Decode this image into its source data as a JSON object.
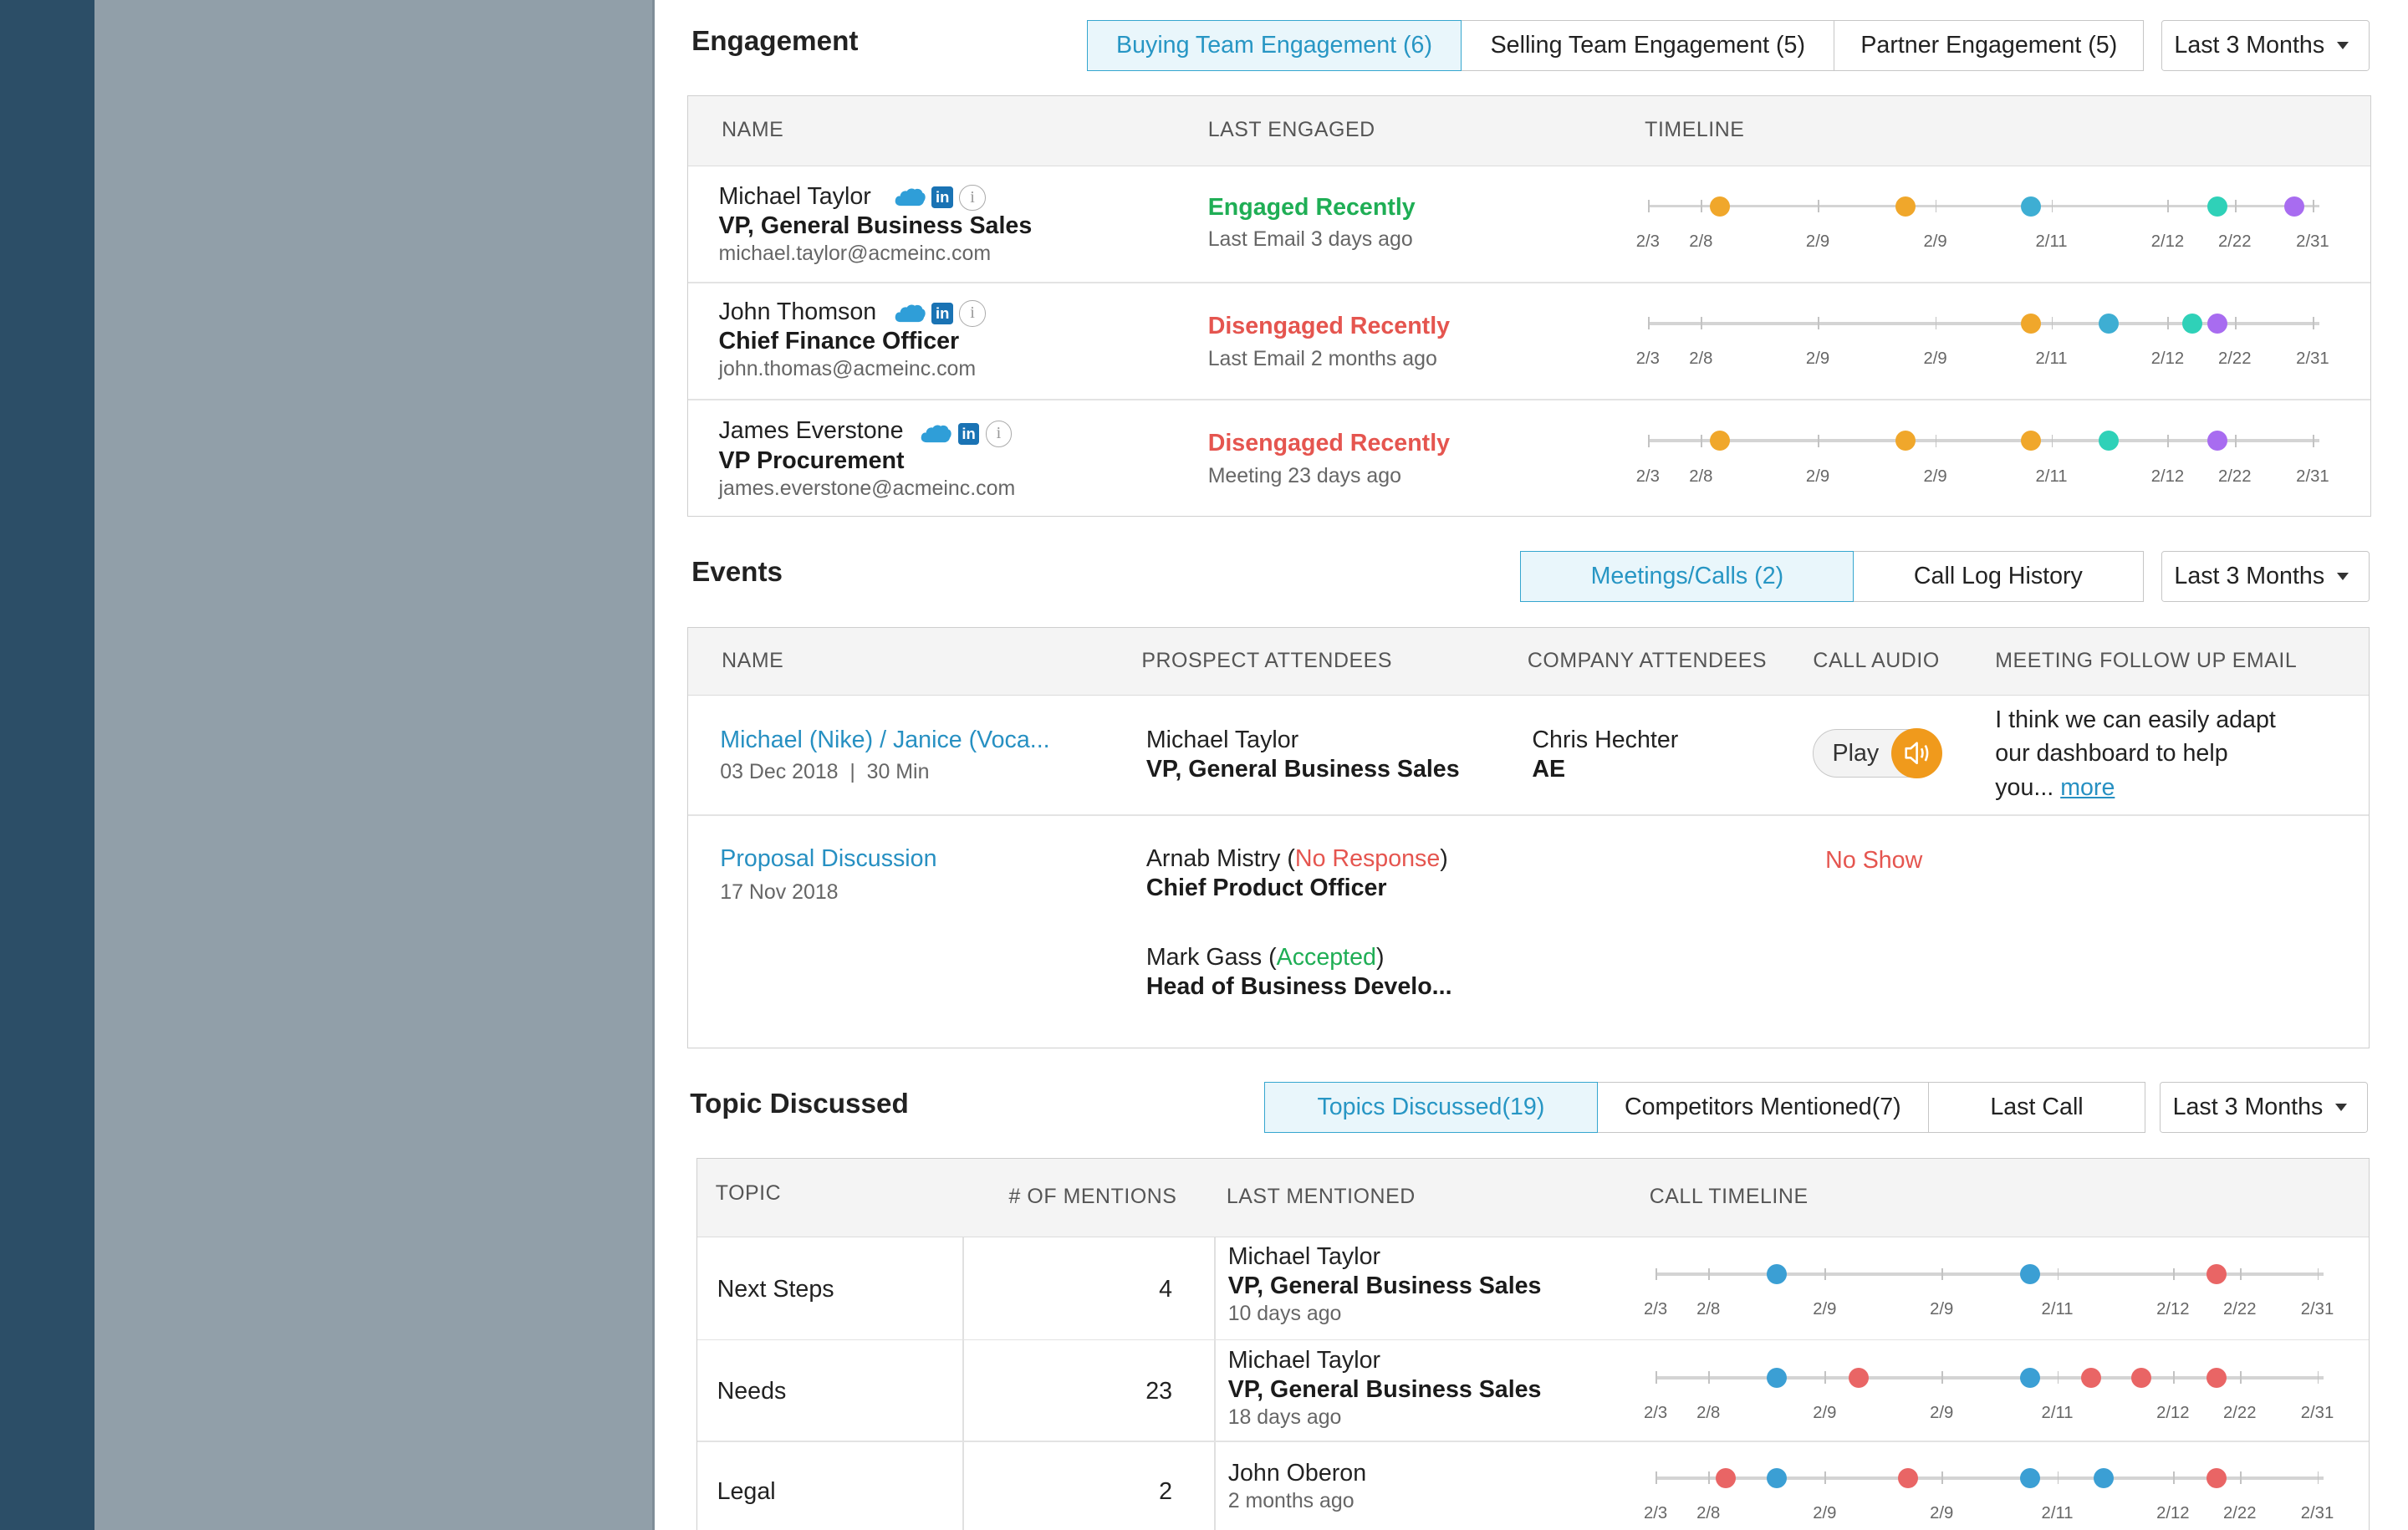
{
  "engagement": {
    "title": "Engagement",
    "tabs": [
      "Buying Team Engagement (6)",
      "Selling Team Engagement (5)",
      "Partner Engagement (5)"
    ],
    "range": "Last 3 Months",
    "headers": [
      "NAME",
      "LAST ENGAGED",
      "TIMELINE"
    ],
    "tick_labels": [
      "2/3",
      "2/8",
      "2/9",
      "2/9",
      "2/11",
      "2/12",
      "2/22",
      "2/31"
    ],
    "rows": [
      {
        "name": "Michael Taylor",
        "title": "VP, General Business Sales",
        "email": "michael.taylor@acmeinc.com",
        "status": "Engaged Recently",
        "status_color": "#1fae55",
        "last": "Last Email 3 days ago",
        "dots": [
          {
            "pos": 0.107,
            "color": "#f0a72b"
          },
          {
            "pos": 0.384,
            "color": "#f0a72b"
          },
          {
            "pos": 0.57,
            "color": "#3eaed3"
          },
          {
            "pos": 0.848,
            "color": "#2fd1b8"
          },
          {
            "pos": 0.963,
            "color": "#a86cf0"
          }
        ]
      },
      {
        "name": "John Thomson",
        "title": "Chief Finance Officer",
        "email": "john.thomas@acmeinc.com",
        "status": "Disengaged Recently",
        "status_color": "#e5554f",
        "last": "Last Email 2 months ago",
        "dots": [
          {
            "pos": 0.57,
            "color": "#f0a72b"
          },
          {
            "pos": 0.686,
            "color": "#3eaed3"
          },
          {
            "pos": 0.811,
            "color": "#2fd1b8"
          },
          {
            "pos": 0.848,
            "color": "#a86cf0"
          }
        ]
      },
      {
        "name": "James Everstone",
        "title": "VP Procurement",
        "email": "james.everstone@acmeinc.com",
        "status": "Disengaged Recently",
        "status_color": "#e5554f",
        "last": "Meeting 23 days ago",
        "dots": [
          {
            "pos": 0.107,
            "color": "#f0a72b"
          },
          {
            "pos": 0.384,
            "color": "#f0a72b"
          },
          {
            "pos": 0.57,
            "color": "#f0a72b"
          },
          {
            "pos": 0.686,
            "color": "#2fd1b8"
          },
          {
            "pos": 0.848,
            "color": "#a86cf0"
          }
        ]
      }
    ]
  },
  "events": {
    "title": "Events",
    "tabs": [
      "Meetings/Calls (2)",
      "Call Log History"
    ],
    "range": "Last 3 Months",
    "headers": [
      "NAME",
      "PROSPECT ATTENDEES",
      "COMPANY ATTENDEES",
      "CALL AUDIO",
      "MEETING FOLLOW UP EMAIL"
    ],
    "row1": {
      "name": "Michael (Nike) / Janice (Voca...",
      "meta": "03 Dec 2018  |  30 Min",
      "prospect_name": "Michael Taylor",
      "prospect_title": "VP, General Business Sales",
      "company_name": "Chris Hechter",
      "company_title": "AE",
      "play": "Play",
      "email_line1": "I think we can easily adapt",
      "email_line2": "our dashboard to help",
      "email_line3": "you...",
      "more": "more"
    },
    "row2": {
      "name": "Proposal Discussion",
      "meta": "17 Nov 2018",
      "p1_name": "Arnab Mistry",
      "p1_status": "No Response",
      "p1_title": "Chief Product Officer",
      "p2_name": "Mark Gass",
      "p2_status": "Accepted",
      "p2_title": "Head of Business Develo...",
      "audio": "No Show"
    }
  },
  "topics": {
    "title": "Topic Discussed",
    "tabs": [
      "Topics Discussed(19)",
      "Competitors Mentioned(7)",
      "Last Call"
    ],
    "range": "Last 3 Months",
    "headers": [
      "TOPIC",
      "# OF MENTIONS",
      "LAST MENTIONED",
      "CALL TIMELINE"
    ],
    "tick_labels": [
      "2/3",
      "2/8",
      "2/9",
      "2/9",
      "2/11",
      "2/12",
      "2/22",
      "2/31"
    ],
    "rows": [
      {
        "topic": "Next Steps",
        "mentions": "4",
        "person": "Michael Taylor",
        "person_title": "VP, General Business Sales",
        "when": "10 days ago",
        "dots": [
          {
            "pos": 0.181,
            "color": "#3b9fd4"
          },
          {
            "pos": 0.56,
            "color": "#3b9fd4"
          },
          {
            "pos": 0.839,
            "color": "#e96565"
          }
        ]
      },
      {
        "topic": "Needs",
        "mentions": "23",
        "person": "Michael Taylor",
        "person_title": "VP, General Business Sales",
        "when": "18 days ago",
        "dots": [
          {
            "pos": 0.181,
            "color": "#3b9fd4"
          },
          {
            "pos": 0.304,
            "color": "#e96565"
          },
          {
            "pos": 0.56,
            "color": "#3b9fd4"
          },
          {
            "pos": 0.652,
            "color": "#e96565"
          },
          {
            "pos": 0.727,
            "color": "#e96565"
          },
          {
            "pos": 0.839,
            "color": "#e96565"
          }
        ]
      },
      {
        "topic": "Legal",
        "mentions": "2",
        "person": "John Oberon",
        "person_title": "",
        "when": "2 months ago",
        "dots": [
          {
            "pos": 0.105,
            "color": "#e96565"
          },
          {
            "pos": 0.181,
            "color": "#3b9fd4"
          },
          {
            "pos": 0.378,
            "color": "#e96565"
          },
          {
            "pos": 0.56,
            "color": "#3b9fd4"
          },
          {
            "pos": 0.67,
            "color": "#3b9fd4"
          },
          {
            "pos": 0.839,
            "color": "#e96565"
          }
        ]
      }
    ]
  }
}
